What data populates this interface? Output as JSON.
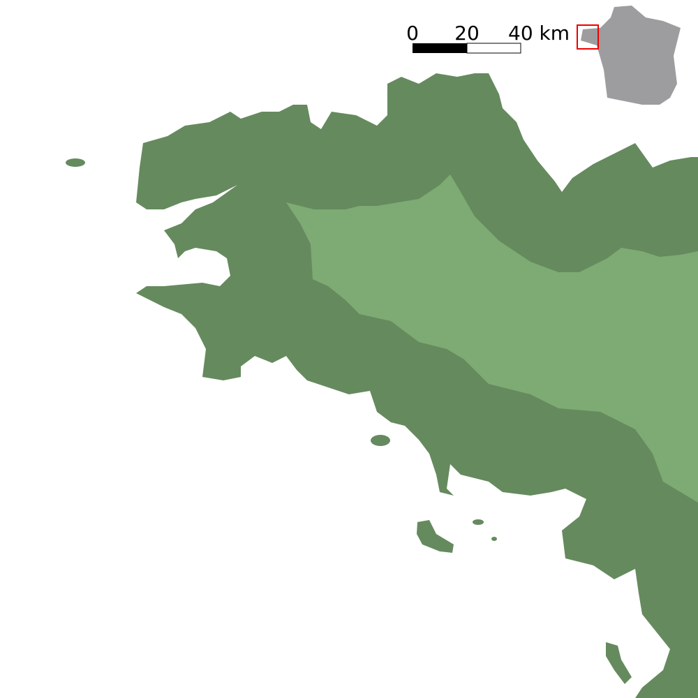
{
  "scale_bar": {
    "labels": [
      "0",
      "20",
      "40 km"
    ]
  }
}
